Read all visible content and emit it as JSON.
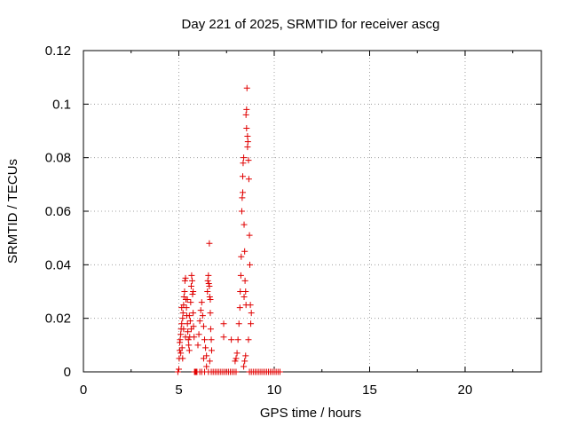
{
  "chart_data": {
    "type": "scatter",
    "title": "Day 221 of 2025, SRMTID for receiver ascg",
    "xlabel": "GPS time / hours",
    "ylabel": "SRMTID / TECUs",
    "xlim": [
      0,
      24
    ],
    "ylim": [
      0,
      0.12
    ],
    "x_ticks": [
      0,
      5,
      10,
      15,
      20
    ],
    "x_tick_labels": [
      "0",
      "5",
      "10",
      "15",
      "20"
    ],
    "y_ticks": [
      0,
      0.02,
      0.04,
      0.06,
      0.08,
      0.1,
      0.12
    ],
    "y_tick_labels": [
      "0",
      "0.02",
      "0.04",
      "0.06",
      "0.08",
      "0.1",
      "0.12"
    ],
    "grid": true,
    "marker": "+",
    "color": "#e00000",
    "series": [
      {
        "name": "SRMTID",
        "points": [
          [
            4.95,
            0.0
          ],
          [
            5.0,
            0.001
          ],
          [
            5.02,
            0.005
          ],
          [
            5.05,
            0.008
          ],
          [
            5.07,
            0.012
          ],
          [
            5.1,
            0.014
          ],
          [
            5.12,
            0.016
          ],
          [
            5.15,
            0.018
          ],
          [
            5.17,
            0.009
          ],
          [
            5.2,
            0.02
          ],
          [
            5.22,
            0.022
          ],
          [
            5.25,
            0.025
          ],
          [
            5.27,
            0.028
          ],
          [
            5.3,
            0.03
          ],
          [
            5.32,
            0.034
          ],
          [
            5.35,
            0.035
          ],
          [
            5.37,
            0.027
          ],
          [
            5.4,
            0.024
          ],
          [
            5.42,
            0.021
          ],
          [
            5.45,
            0.018
          ],
          [
            5.47,
            0.015
          ],
          [
            5.5,
            0.012
          ],
          [
            5.52,
            0.01
          ],
          [
            5.55,
            0.008
          ],
          [
            5.57,
            0.013
          ],
          [
            5.6,
            0.019
          ],
          [
            5.62,
            0.026
          ],
          [
            5.65,
            0.032
          ],
          [
            5.67,
            0.036
          ],
          [
            5.7,
            0.034
          ],
          [
            5.72,
            0.029
          ],
          [
            5.75,
            0.022
          ],
          [
            5.77,
            0.017
          ],
          [
            5.8,
            0.013
          ],
          [
            5.82,
            0.0
          ],
          [
            5.85,
            0.0
          ],
          [
            5.88,
            0.0
          ],
          [
            5.9,
            0.0
          ],
          [
            5.93,
            0.0
          ],
          [
            5.95,
            0.0
          ],
          [
            5.05,
            0.011
          ],
          [
            5.1,
            0.007
          ],
          [
            5.15,
            0.024
          ],
          [
            5.25,
            0.016
          ],
          [
            5.35,
            0.013
          ],
          [
            5.45,
            0.027
          ],
          [
            5.55,
            0.021
          ],
          [
            5.65,
            0.016
          ],
          [
            5.75,
            0.03
          ],
          [
            5.2,
            0.005
          ],
          [
            6.0,
            0.01
          ],
          [
            6.05,
            0.014
          ],
          [
            6.1,
            0.019
          ],
          [
            6.15,
            0.023
          ],
          [
            6.2,
            0.026
          ],
          [
            6.25,
            0.021
          ],
          [
            6.3,
            0.017
          ],
          [
            6.35,
            0.012
          ],
          [
            6.4,
            0.009
          ],
          [
            6.45,
            0.006
          ],
          [
            6.5,
            0.03
          ],
          [
            6.52,
            0.034
          ],
          [
            6.55,
            0.036
          ],
          [
            6.57,
            0.033
          ],
          [
            6.6,
            0.048
          ],
          [
            6.62,
            0.028
          ],
          [
            6.65,
            0.022
          ],
          [
            6.67,
            0.016
          ],
          [
            6.7,
            0.012
          ],
          [
            6.72,
            0.008
          ],
          [
            6.1,
            0.0
          ],
          [
            6.2,
            0.0
          ],
          [
            6.35,
            0.0
          ],
          [
            6.45,
            0.002
          ],
          [
            6.55,
            0.0
          ],
          [
            6.62,
            0.004
          ],
          [
            6.7,
            0.0
          ],
          [
            6.3,
            0.005
          ],
          [
            6.6,
            0.032
          ],
          [
            6.65,
            0.027
          ],
          [
            6.8,
            0.0
          ],
          [
            6.9,
            0.0
          ],
          [
            7.0,
            0.0
          ],
          [
            7.1,
            0.0
          ],
          [
            7.2,
            0.0
          ],
          [
            7.3,
            0.0
          ],
          [
            7.4,
            0.0
          ],
          [
            7.5,
            0.0
          ],
          [
            7.6,
            0.0
          ],
          [
            7.7,
            0.0
          ],
          [
            7.8,
            0.0
          ],
          [
            7.9,
            0.0
          ],
          [
            8.0,
            0.0
          ],
          [
            7.35,
            0.018
          ],
          [
            7.35,
            0.013
          ],
          [
            7.75,
            0.012
          ],
          [
            7.95,
            0.004
          ],
          [
            8.0,
            0.005
          ],
          [
            8.05,
            0.007
          ],
          [
            8.1,
            0.012
          ],
          [
            8.15,
            0.018
          ],
          [
            8.2,
            0.024
          ],
          [
            8.22,
            0.03
          ],
          [
            8.25,
            0.036
          ],
          [
            8.27,
            0.043
          ],
          [
            8.3,
            0.06
          ],
          [
            8.32,
            0.065
          ],
          [
            8.35,
            0.073
          ],
          [
            8.37,
            0.078
          ],
          [
            8.4,
            0.08
          ],
          [
            8.42,
            0.055
          ],
          [
            8.45,
            0.045
          ],
          [
            8.47,
            0.034
          ],
          [
            8.5,
            0.03
          ],
          [
            8.52,
            0.025
          ],
          [
            8.55,
            0.098
          ],
          [
            8.57,
            0.106
          ],
          [
            8.6,
            0.088
          ],
          [
            8.62,
            0.086
          ],
          [
            8.65,
            0.079
          ],
          [
            8.67,
            0.072
          ],
          [
            8.7,
            0.051
          ],
          [
            8.72,
            0.04
          ],
          [
            8.75,
            0.025
          ],
          [
            8.77,
            0.018
          ],
          [
            8.8,
            0.022
          ],
          [
            8.4,
            0.002
          ],
          [
            8.45,
            0.004
          ],
          [
            8.5,
            0.006
          ],
          [
            8.55,
            0.091
          ],
          [
            8.6,
            0.084
          ],
          [
            8.65,
            0.012
          ],
          [
            8.52,
            0.096
          ],
          [
            8.35,
            0.067
          ],
          [
            8.42,
            0.028
          ],
          [
            8.7,
            0.0
          ],
          [
            8.8,
            0.0
          ],
          [
            8.9,
            0.0
          ],
          [
            9.0,
            0.0
          ],
          [
            9.1,
            0.0
          ],
          [
            9.2,
            0.0
          ],
          [
            9.3,
            0.0
          ],
          [
            9.4,
            0.0
          ],
          [
            9.5,
            0.0
          ],
          [
            9.6,
            0.0
          ],
          [
            9.7,
            0.0
          ],
          [
            9.8,
            0.0
          ],
          [
            9.9,
            0.0
          ],
          [
            10.0,
            0.0
          ],
          [
            10.1,
            0.0
          ],
          [
            10.2,
            0.0
          ],
          [
            10.3,
            0.0
          ]
        ]
      }
    ]
  }
}
